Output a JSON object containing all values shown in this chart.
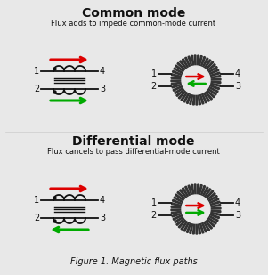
{
  "bg_color": "#e8e8e8",
  "text_color": "#111111",
  "title_common": "Common mode",
  "subtitle_common": "Flux adds to impede common-mode current",
  "title_diff": "Differential mode",
  "subtitle_diff": "Flux cancels to pass differential-mode current",
  "caption": "Figure 1. Magnetic flux paths",
  "red_color": "#dd0000",
  "green_color": "#00aa00",
  "wire_color": "#111111",
  "toroid_white": "#ffffff",
  "toroid_dark": "#333333",
  "core_color": "#111111"
}
